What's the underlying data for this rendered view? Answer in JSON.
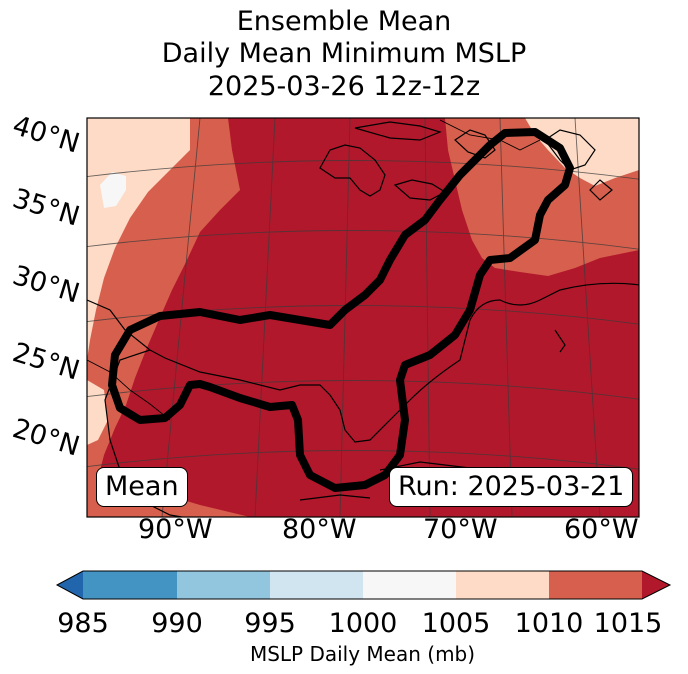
{
  "title": {
    "line1": "Ensemble Mean",
    "line2": "Daily Mean Minimum MSLP",
    "line3": "2025-03-26 12z-12z"
  },
  "map": {
    "lat_labels": [
      "40°N",
      "35°N",
      "30°N",
      "25°N",
      "20°N"
    ],
    "lon_labels": [
      "90°W",
      "80°W",
      "70°W",
      "60°W"
    ],
    "mean_label": "Mean",
    "run_label": "Run: 2025-03-21"
  },
  "colorbar": {
    "ticks": [
      "985",
      "990",
      "995",
      "1000",
      "1005",
      "1010",
      "1015"
    ],
    "label": "MSLP Daily Mean (mb)",
    "colors": [
      "#2166ac",
      "#4393c3",
      "#92c5de",
      "#d1e5f0",
      "#f7f7f7",
      "#fddbc7",
      "#d6604d",
      "#b2182b"
    ]
  },
  "colors": {
    "band_1005_1010": "#fddbc7",
    "band_1010_1015": "#d6604d",
    "band_above_1015": "#b2182b",
    "contour": "#000000"
  }
}
